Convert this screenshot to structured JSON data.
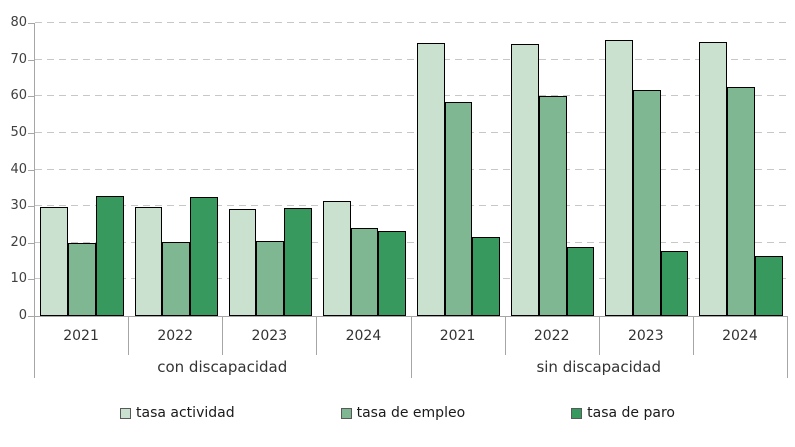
{
  "chart_data": {
    "type": "bar",
    "title": "",
    "group_labels": [
      "con discapacidad",
      "sin discapacidad"
    ],
    "categories": [
      "2021",
      "2022",
      "2023",
      "2024",
      "2021",
      "2022",
      "2023",
      "2024"
    ],
    "series": [
      {
        "name": "tasa actividad",
        "color": "#cbe1d0",
        "values": [
          29.8,
          29.8,
          29.2,
          31.3,
          74.5,
          74.2,
          75.4,
          74.8
        ]
      },
      {
        "name": "tasa de empleo",
        "color": "#7fb793",
        "values": [
          20.0,
          20.3,
          20.6,
          24.0,
          58.5,
          60.0,
          61.6,
          62.4
        ]
      },
      {
        "name": "tasa de paro",
        "color": "#38995e",
        "values": [
          32.9,
          32.5,
          29.5,
          23.1,
          21.6,
          18.8,
          17.7,
          16.4
        ]
      }
    ],
    "ylim": [
      0,
      80
    ],
    "y_ticks": [
      0,
      10,
      20,
      30,
      40,
      50,
      60,
      70,
      80
    ],
    "grid": "horizontal-dashed",
    "legend_position": "bottom",
    "colors": {
      "grid_line": "#c7c7c7",
      "axis_line": "#a6a6a6",
      "bar_border": "#000000",
      "text": "#333333"
    }
  }
}
